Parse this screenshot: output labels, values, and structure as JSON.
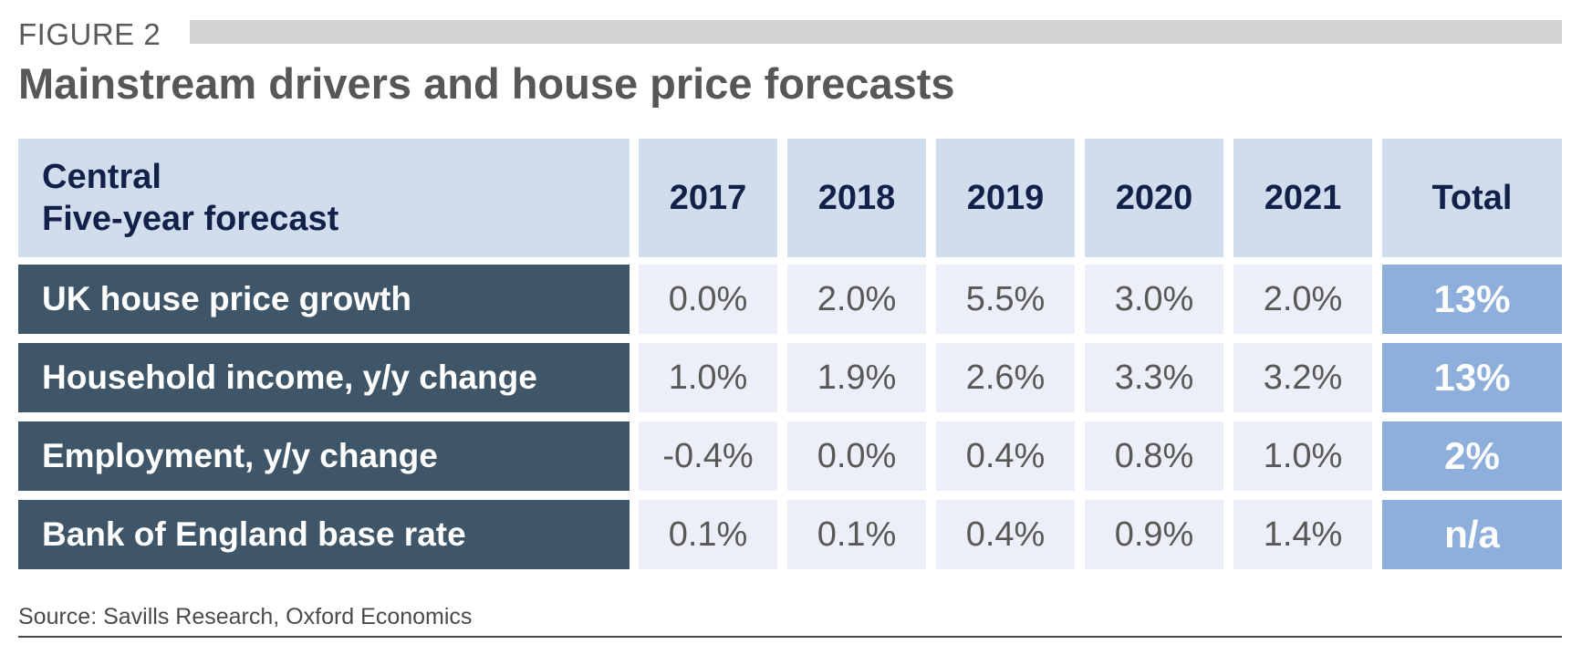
{
  "figure_label": "FIGURE 2",
  "title": "Mainstream drivers and house price forecasts",
  "source": "Source: Savills Research, Oxford Economics",
  "colors": {
    "header_bg": "#d0dded",
    "header_text": "#13214a",
    "row_label_bg": "#3f5669",
    "value_bg": "#eceff7",
    "total_bg": "#8eaedb",
    "figure_bar": "#d3d4d6"
  },
  "chart_data": {
    "type": "table",
    "header": {
      "line1": "Central",
      "line2": "Five-year forecast"
    },
    "columns": [
      "2017",
      "2018",
      "2019",
      "2020",
      "2021",
      "Total"
    ],
    "rows": [
      {
        "label": "UK house price growth",
        "values": [
          "0.0%",
          "2.0%",
          "5.5%",
          "3.0%",
          "2.0%"
        ],
        "total": "13%"
      },
      {
        "label": "Household income, y/y change",
        "values": [
          "1.0%",
          "1.9%",
          "2.6%",
          "3.3%",
          "3.2%"
        ],
        "total": "13%"
      },
      {
        "label": "Employment, y/y change",
        "values": [
          "-0.4%",
          "0.0%",
          "0.4%",
          "0.8%",
          "1.0%"
        ],
        "total": "2%"
      },
      {
        "label": "Bank of England base rate",
        "values": [
          "0.1%",
          "0.1%",
          "0.4%",
          "0.9%",
          "1.4%"
        ],
        "total": "n/a"
      }
    ]
  }
}
